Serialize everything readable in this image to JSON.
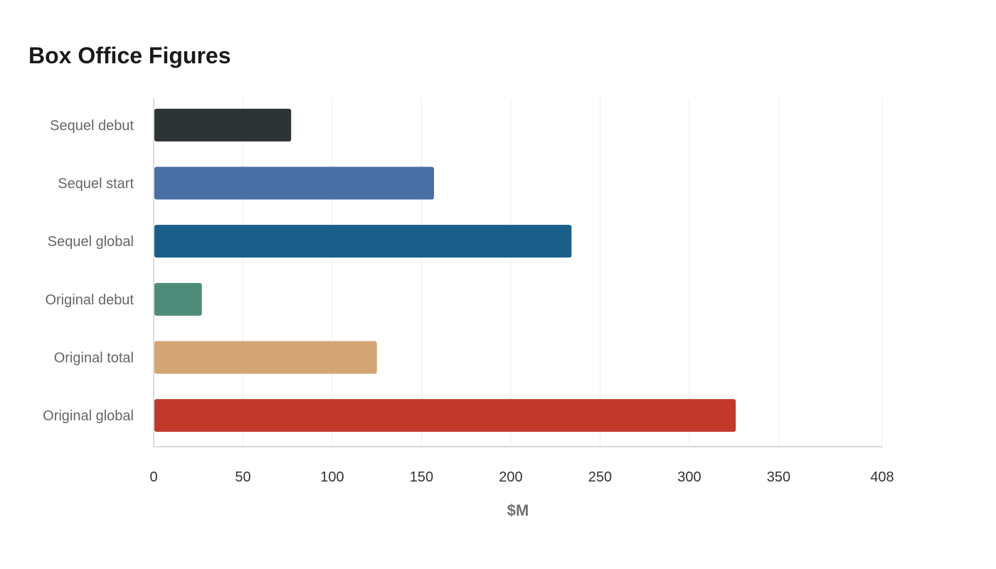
{
  "chart_data": {
    "type": "bar",
    "orientation": "horizontal",
    "title": "Box Office Figures",
    "xlabel": "$M",
    "ylabel": "",
    "categories": [
      "Sequel debut",
      "Sequel start",
      "Sequel global",
      "Original debut",
      "Original total",
      "Original global"
    ],
    "values": [
      77,
      157,
      234,
      27,
      125,
      326
    ],
    "colors": [
      "#2d3436",
      "#4a6fa5",
      "#1a5f8a",
      "#4e8c7a",
      "#d4a574",
      "#c0392b"
    ],
    "xlim": [
      0,
      408
    ],
    "xticks": [
      0,
      50,
      100,
      150,
      200,
      250,
      300,
      350,
      408
    ],
    "grid": true,
    "legend": "none"
  }
}
